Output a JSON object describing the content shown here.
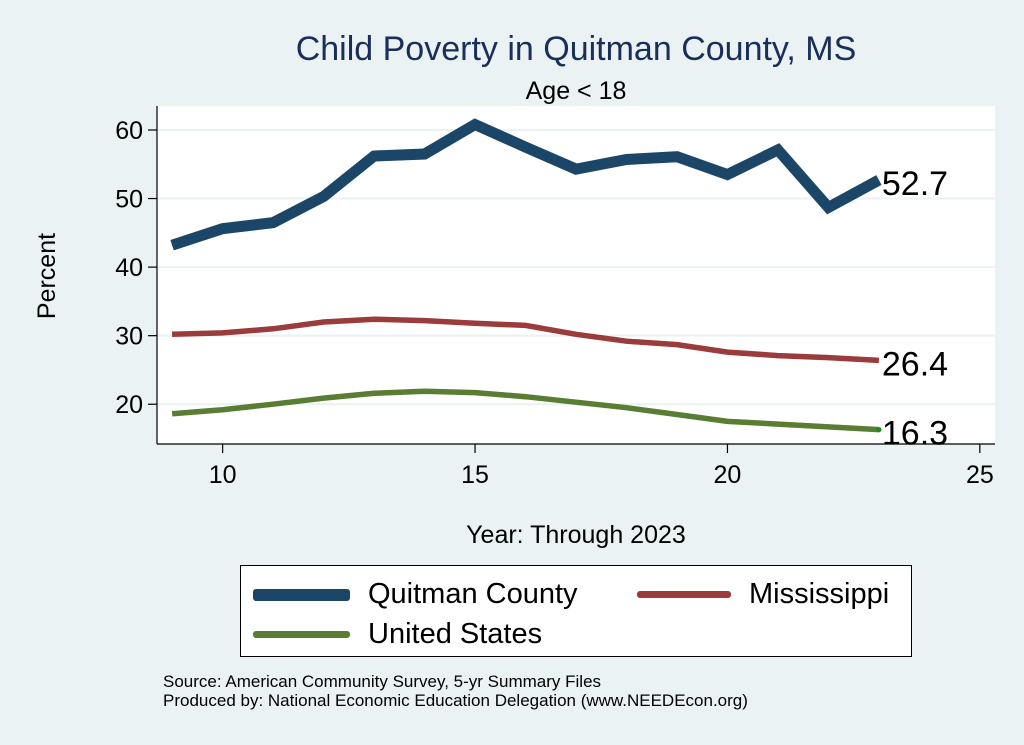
{
  "colors": {
    "background": "#eaf2f3",
    "plot_background": "#ffffff",
    "title": "#1a2e5a",
    "quitman": "#1c4668",
    "mississippi": "#9b3b3b",
    "united_states": "#5a7d34",
    "grid": "#eaf2f3"
  },
  "chart_data": {
    "type": "line",
    "title": "Child Poverty in Quitman County, MS",
    "subtitle": "Age < 18",
    "xlabel": "Year: Through 2023",
    "ylabel": "Percent",
    "xlim": [
      8.7,
      25.3
    ],
    "ylim": [
      14.2,
      63.5
    ],
    "xticks": [
      10,
      15,
      20,
      25
    ],
    "yticks": [
      20,
      30,
      40,
      50,
      60
    ],
    "grid": true,
    "legend_position": "bottom",
    "series": [
      {
        "name": "Quitman County",
        "color_key": "quitman",
        "weight": "heavy",
        "x": [
          9,
          10,
          11,
          12,
          13,
          14,
          15,
          16,
          17,
          18,
          19,
          20,
          21,
          22,
          23
        ],
        "values": [
          43.2,
          45.6,
          46.5,
          50.3,
          56.2,
          56.5,
          60.8,
          57.5,
          54.3,
          55.7,
          56.1,
          53.5,
          57.1,
          48.7,
          52.7
        ],
        "end_label": "52.7"
      },
      {
        "name": "Mississippi",
        "color_key": "mississippi",
        "weight": "medium",
        "x": [
          9,
          10,
          11,
          12,
          13,
          14,
          15,
          16,
          17,
          18,
          19,
          20,
          21,
          22,
          23
        ],
        "values": [
          30.2,
          30.4,
          31.0,
          32.0,
          32.4,
          32.2,
          31.8,
          31.5,
          30.2,
          29.2,
          28.7,
          27.6,
          27.1,
          26.8,
          26.4
        ],
        "end_label": "26.4"
      },
      {
        "name": "United States",
        "color_key": "united_states",
        "weight": "medium",
        "x": [
          9,
          10,
          11,
          12,
          13,
          14,
          15,
          16,
          17,
          18,
          19,
          20,
          21,
          22,
          23
        ],
        "values": [
          18.6,
          19.2,
          20.0,
          20.9,
          21.6,
          21.9,
          21.7,
          21.1,
          20.3,
          19.5,
          18.5,
          17.5,
          17.1,
          16.7,
          16.3
        ],
        "end_label": "16.3"
      }
    ]
  },
  "legend": {
    "items": [
      {
        "label": "Quitman County",
        "color_key": "quitman"
      },
      {
        "label": "Mississippi",
        "color_key": "mississippi"
      },
      {
        "label": "United States",
        "color_key": "united_states"
      }
    ]
  },
  "source": {
    "line1": "Source: American Community Survey, 5-yr Summary Files",
    "line2": "Produced by: National Economic Education Delegation (www.NEEDEcon.org)"
  }
}
